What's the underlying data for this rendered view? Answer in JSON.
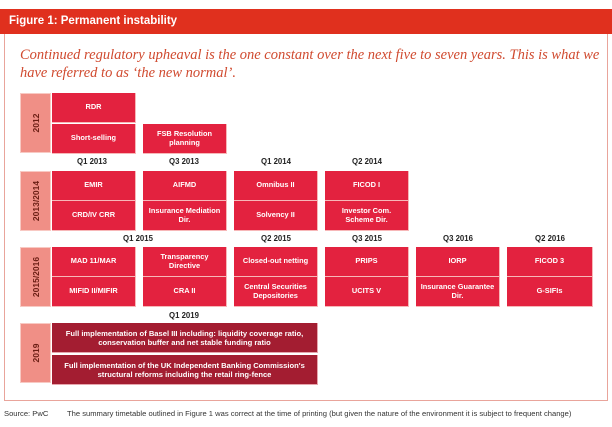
{
  "title": "Figure 1: Permanent instability",
  "subtitle": "Continued regulatory upheaval is the one constant over the next five to seven years. This is what we have referred to as ‘the new normal’.",
  "years": [
    "2012",
    "2013/2014",
    "2015/2016",
    "2019"
  ],
  "quarters_2013_2014": [
    "Q1 2013",
    "Q3 2013",
    "Q1 2014",
    "Q2 2014"
  ],
  "quarters_2015_2016": [
    "Q1 2015",
    "Q2 2015",
    "Q3 2015",
    "Q3 2016",
    "Q2 2016"
  ],
  "quarters_2019": [
    "Q1 2019"
  ],
  "items_2012": [
    "RDR",
    "Short-selling",
    "FSB Resolution planning"
  ],
  "items_2013_2014": [
    "EMIR",
    "AIFMD",
    "Omnibus II",
    "FICOD I",
    "CRD/IV CRR",
    "Insurance Mediation Dir.",
    "Solvency II",
    "Investor Com. Scheme Dir."
  ],
  "items_2015_2016": [
    "MAD 11/MAR",
    "Transparency Directive",
    "Closed-out netting",
    "PRIPS",
    "IORP",
    "FICOD 3",
    "MIFID II/MIFIR",
    "CRA II",
    "Central Securities Depositories",
    "UCITS V",
    "Insurance Guarantee Dir.",
    "G-SIFIs"
  ],
  "items_2019": [
    "Full implementation of Basel III including: liquidity coverage ratio, conservation buffer and net stable funding ratio",
    "Full implementation of the UK Independent Banking Commission's structural reforms including the retail ring-fence"
  ],
  "footer": {
    "source": "Source: PwC",
    "note": "The summary timetable outlined in Figure 1 was correct at the time of printing (but given the nature of the environment it is subject to frequent change)"
  },
  "colors": {
    "accent": "#e0301e",
    "box": "#e3223f",
    "dark_box": "#a31d31",
    "year_bar": "#f08f86"
  }
}
